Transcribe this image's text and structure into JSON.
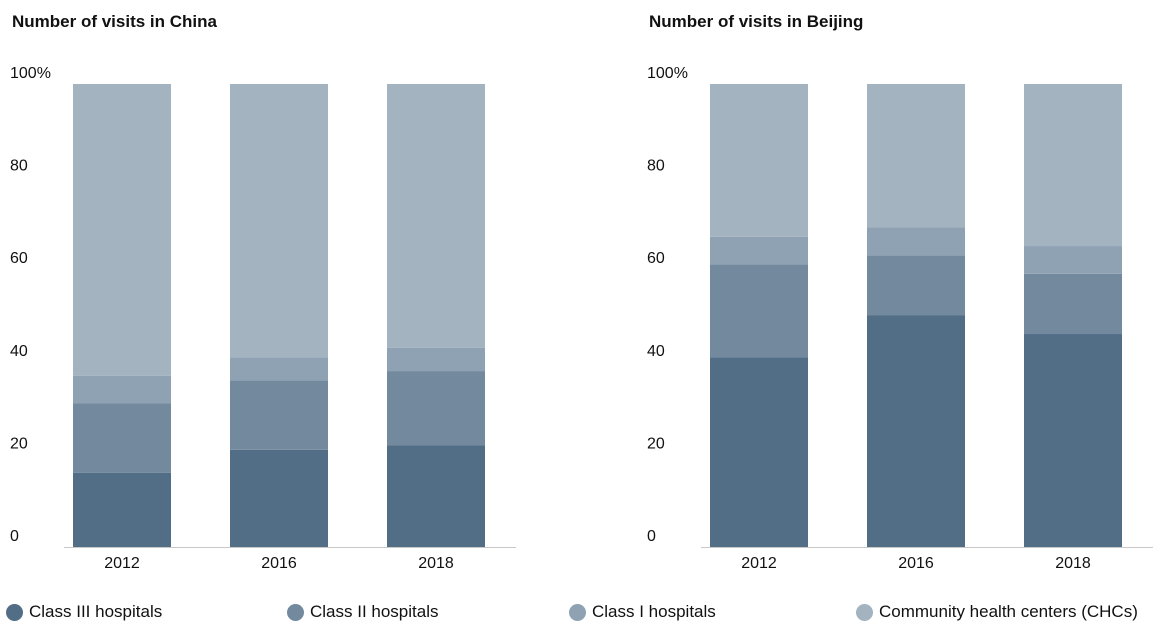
{
  "chart_data": [
    {
      "type": "bar",
      "stacked": true,
      "title": "Number of visits in China",
      "categories": [
        "2012",
        "2016",
        "2018"
      ],
      "y_ticks": [
        "0",
        "20",
        "40",
        "60",
        "80",
        "100%"
      ],
      "ylim": [
        0,
        100
      ],
      "grid": false,
      "series": [
        {
          "name": "Class III hospitals",
          "color": "#526e86",
          "values": [
            16,
            21,
            22
          ]
        },
        {
          "name": "Class II hospitals",
          "color": "#738a9e",
          "values": [
            15,
            15,
            16
          ]
        },
        {
          "name": "Class I hospitals",
          "color": "#8ea2b3",
          "values": [
            6,
            5,
            5
          ]
        },
        {
          "name": "Community health centers (CHCs)",
          "color": "#a3b3c0",
          "values": [
            63,
            59,
            57
          ]
        }
      ]
    },
    {
      "type": "bar",
      "stacked": true,
      "title": "Number of visits in Beijing",
      "categories": [
        "2012",
        "2016",
        "2018"
      ],
      "y_ticks": [
        "0",
        "20",
        "40",
        "60",
        "80",
        "100%"
      ],
      "ylim": [
        0,
        100
      ],
      "grid": false,
      "series": [
        {
          "name": "Class III hospitals",
          "color": "#526e86",
          "values": [
            41,
            50,
            46
          ]
        },
        {
          "name": "Class II hospitals",
          "color": "#738a9e",
          "values": [
            20,
            13,
            13
          ]
        },
        {
          "name": "Class I hospitals",
          "color": "#8ea2b3",
          "values": [
            6,
            6,
            6
          ]
        },
        {
          "name": "Community health centers (CHCs)",
          "color": "#a3b3c0",
          "values": [
            33,
            31,
            35
          ]
        }
      ]
    }
  ],
  "legend": {
    "placement": "bottom",
    "items": [
      {
        "label": "Class III hospitals",
        "color": "#526e86"
      },
      {
        "label": "Class II hospitals",
        "color": "#738a9e"
      },
      {
        "label": "Class I hospitals",
        "color": "#8ea2b3"
      },
      {
        "label": "Community health centers (CHCs)",
        "color": "#a3b3c0"
      }
    ]
  }
}
